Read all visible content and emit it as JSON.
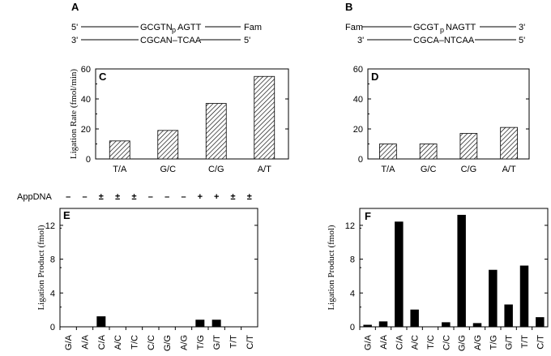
{
  "panel_A": {
    "label": "A",
    "top_left": "5'",
    "top_seq_a": "GCGTN",
    "top_p": "p",
    "top_seq_b": "AGTT",
    "top_right": "Fam",
    "bottom_left": "3'",
    "bottom_seq": "CGCAN–TCAA",
    "bottom_right": "5'"
  },
  "panel_B": {
    "label": "B",
    "top_left": "Fam",
    "top_seq_a": "GCGT",
    "top_p": "p",
    "top_seq_b": "NAGTT",
    "top_right": "3'",
    "bottom_left": "3'",
    "bottom_seq": "CGCA–NTCAA",
    "bottom_right": "5'"
  },
  "appdna_label": "AppDNA",
  "appdna_marks": [
    "–",
    "–",
    "±",
    "±",
    "±",
    "–",
    "–",
    "–",
    "+",
    "+",
    "±",
    "±"
  ],
  "colors": {
    "bar": "#000000",
    "hatch": "#000000"
  },
  "chart_data": [
    {
      "id": "C",
      "label": "C",
      "type": "bar",
      "style": "hatched",
      "categories": [
        "T/A",
        "G/C",
        "C/G",
        "A/T"
      ],
      "values": [
        12,
        19,
        37,
        55
      ],
      "ylabel": "Ligation Rate (fmol/min)",
      "ylim": [
        0,
        60
      ],
      "yticks": [
        "0",
        "20",
        "40",
        "60"
      ]
    },
    {
      "id": "D",
      "label": "D",
      "type": "bar",
      "style": "hatched",
      "categories": [
        "T/A",
        "G/C",
        "C/G",
        "A/T"
      ],
      "values": [
        10,
        10,
        17,
        21
      ],
      "ylabel": "",
      "ylim": [
        0,
        60
      ],
      "yticks": [
        "0",
        "20",
        "40",
        "60"
      ]
    },
    {
      "id": "E",
      "label": "E",
      "type": "bar",
      "style": "solid",
      "categories": [
        "G/A",
        "A/A",
        "C/A",
        "A/C",
        "T/C",
        "C/C",
        "G/G",
        "A/G",
        "T/G",
        "G/T",
        "T/T",
        "C/T"
      ],
      "values": [
        0,
        0,
        1.2,
        0,
        0,
        0,
        0,
        0,
        0.8,
        0.8,
        0,
        0
      ],
      "ylabel": "Ligation Product (fmol)",
      "ylim": [
        0,
        14
      ],
      "yticks": [
        "0",
        "4",
        "8",
        "12"
      ]
    },
    {
      "id": "F",
      "label": "F",
      "type": "bar",
      "style": "solid",
      "categories": [
        "G/A",
        "A/A",
        "C/A",
        "A/C",
        "T/C",
        "C/C",
        "G/G",
        "A/G",
        "T/G",
        "G/T",
        "T/T",
        "C/T"
      ],
      "values": [
        0.2,
        0.6,
        12.4,
        2.0,
        0,
        0.5,
        13.2,
        0.4,
        6.7,
        2.6,
        7.2,
        1.1
      ],
      "ylabel": "Ligation Product (fmol)",
      "ylim": [
        0,
        14
      ],
      "yticks": [
        "0",
        "4",
        "8",
        "12"
      ]
    }
  ]
}
